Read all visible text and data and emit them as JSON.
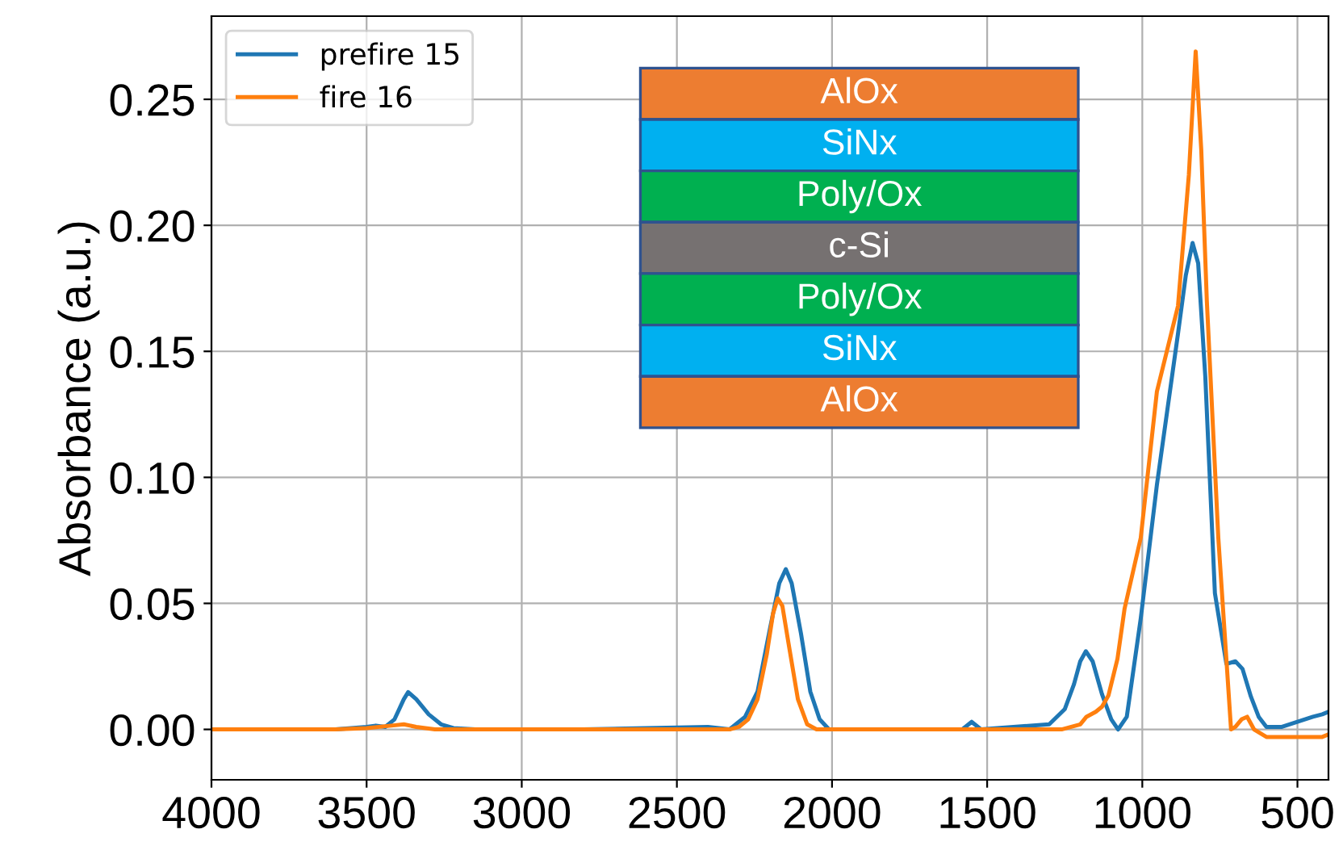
{
  "chart_data": {
    "type": "line",
    "ylabel": "Absorbance (a.u.)",
    "xlim": [
      4000,
      400
    ],
    "xticks": [
      4000,
      3500,
      3000,
      2500,
      2000,
      1500,
      1000,
      500
    ],
    "ylim": [
      -0.02,
      0.283
    ],
    "yticks": [
      {
        "value": 0.0,
        "label": "0.00"
      },
      {
        "value": 0.05,
        "label": "0.05"
      },
      {
        "value": 0.1,
        "label": "0.10"
      },
      {
        "value": 0.15,
        "label": "0.15"
      },
      {
        "value": 0.2,
        "label": "0.20"
      },
      {
        "value": 0.25,
        "label": "0.25"
      }
    ],
    "grid": true,
    "legend": "top left",
    "annotations": [
      "AlOx",
      "SiNx",
      "Poly/Ox",
      "c-Si",
      "Poly/Ox",
      "SiNx",
      "AlOx"
    ],
    "series": [
      {
        "name": "prefire 15",
        "color": "#1f77b4",
        "x": [
          4000,
          3600,
          3500,
          3470,
          3440,
          3410,
          3380,
          3366,
          3340,
          3300,
          3260,
          3220,
          3150,
          2800,
          2400,
          2330,
          2310,
          2280,
          2240,
          2200,
          2170,
          2149,
          2130,
          2100,
          2070,
          2040,
          2010,
          1800,
          1580,
          1550,
          1520,
          1300,
          1250,
          1220,
          1200,
          1182,
          1160,
          1130,
          1100,
          1078,
          1050,
          1005,
          953,
          885,
          860,
          838,
          820,
          797,
          766,
          729,
          700,
          677,
          650,
          625,
          600,
          550,
          500,
          450,
          420,
          400
        ],
        "values": [
          0,
          0,
          0.001,
          0.0015,
          0.001,
          0.004,
          0.012,
          0.0148,
          0.012,
          0.006,
          0.002,
          0.0005,
          0,
          0,
          0.001,
          0.0,
          0.002,
          0.005,
          0.015,
          0.04,
          0.058,
          0.0636,
          0.058,
          0.038,
          0.015,
          0.004,
          0,
          0,
          0,
          0.003,
          0,
          0.002,
          0.008,
          0.018,
          0.027,
          0.031,
          0.027,
          0.014,
          0.004,
          0.0,
          0.005,
          0.044,
          0.097,
          0.157,
          0.18,
          0.193,
          0.185,
          0.14,
          0.054,
          0.026,
          0.027,
          0.024,
          0.013,
          0.005,
          0.001,
          0.001,
          0.003,
          0.005,
          0.006,
          0.007
        ]
      },
      {
        "name": "fire 16",
        "color": "#ff7f0e",
        "x": [
          4000,
          3600,
          3500,
          3420,
          3380,
          3340,
          3280,
          2800,
          2400,
          2330,
          2300,
          2270,
          2240,
          2210,
          2190,
          2175,
          2160,
          2140,
          2110,
          2080,
          2050,
          1800,
          1400,
          1260,
          1200,
          1180,
          1150,
          1130,
          1109,
          1080,
          1057,
          1005,
          953,
          885,
          850,
          828,
          810,
          792,
          755,
          714,
          700,
          680,
          662,
          640,
          600,
          500,
          420,
          400
        ],
        "values": [
          0,
          0,
          0.0005,
          0.0015,
          0.002,
          0.001,
          0,
          0,
          0,
          0,
          0.001,
          0.004,
          0.012,
          0.03,
          0.046,
          0.052,
          0.049,
          0.034,
          0.012,
          0.002,
          0,
          0,
          0,
          0,
          0.002,
          0.005,
          0.007,
          0.009,
          0.0135,
          0.028,
          0.048,
          0.076,
          0.134,
          0.168,
          0.22,
          0.269,
          0.23,
          0.17,
          0.076,
          0.0,
          0.001,
          0.004,
          0.005,
          0.0,
          -0.003,
          -0.003,
          -0.003,
          -0.002
        ]
      }
    ]
  }
}
